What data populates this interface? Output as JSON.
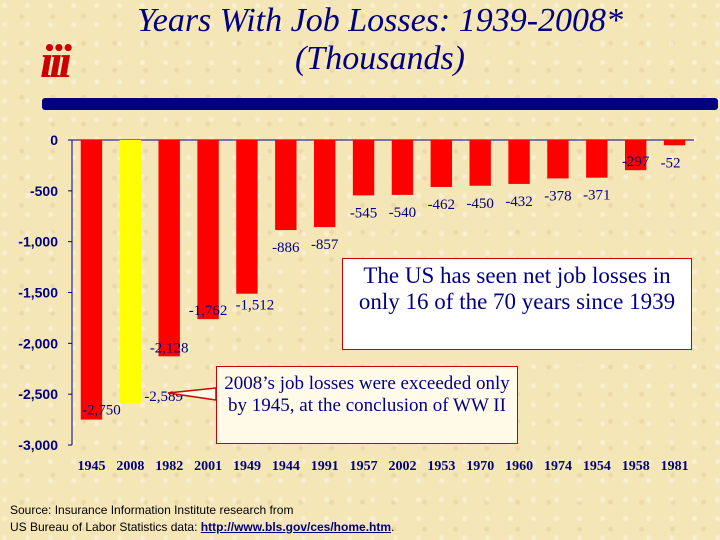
{
  "title": {
    "line1": "Years With Job Losses: 1939-2008*",
    "line2": "(Thousands)"
  },
  "logo": {
    "text": "iii"
  },
  "chart_data": {
    "type": "bar",
    "categories": [
      "1945",
      "2008",
      "1982",
      "2001",
      "1949",
      "1944",
      "1991",
      "1957",
      "2002",
      "1953",
      "1970",
      "1960",
      "1974",
      "1954",
      "1958",
      "1981"
    ],
    "values": [
      -2750,
      -2589,
      -2128,
      -1762,
      -1512,
      -886,
      -857,
      -545,
      -540,
      -462,
      -450,
      -432,
      -378,
      -371,
      -297,
      -52
    ],
    "value_labels": [
      "-2,750",
      "-2,589",
      "-2,128",
      "-1,762",
      "-1,512",
      "-886",
      "-857",
      "-545",
      "-540",
      "-462",
      "-450",
      "-432",
      "-378",
      "-371",
      "-297",
      "-52"
    ],
    "highlight_category": "2008",
    "yticks": [
      0,
      -500,
      -1000,
      -1500,
      -2000,
      -2500,
      -3000
    ],
    "ytick_labels": [
      "0",
      "-500",
      "-1,000",
      "-1,500",
      "-2,000",
      "-2,500",
      "-3,000"
    ],
    "ylim": [
      -3000,
      0
    ],
    "colors": {
      "bar": "#ff0000",
      "highlight": "#ffff00",
      "value_label": "#000080",
      "tick_label": "#000080"
    },
    "grid": false,
    "xlabel": "",
    "ylabel": ""
  },
  "callouts": {
    "box1": "The US has seen net job losses in only 16 of the 70 years since 1939",
    "box2": "2008’s job losses were exceeded only by 1945, at the conclusion of WW II"
  },
  "source": {
    "line1": "Source: Insurance Information Institute research from",
    "line2_prefix": "US Bureau of Labor Statistics data: ",
    "link": "http://www.bls.gov/ces/home.htm",
    "line2_suffix": "."
  }
}
